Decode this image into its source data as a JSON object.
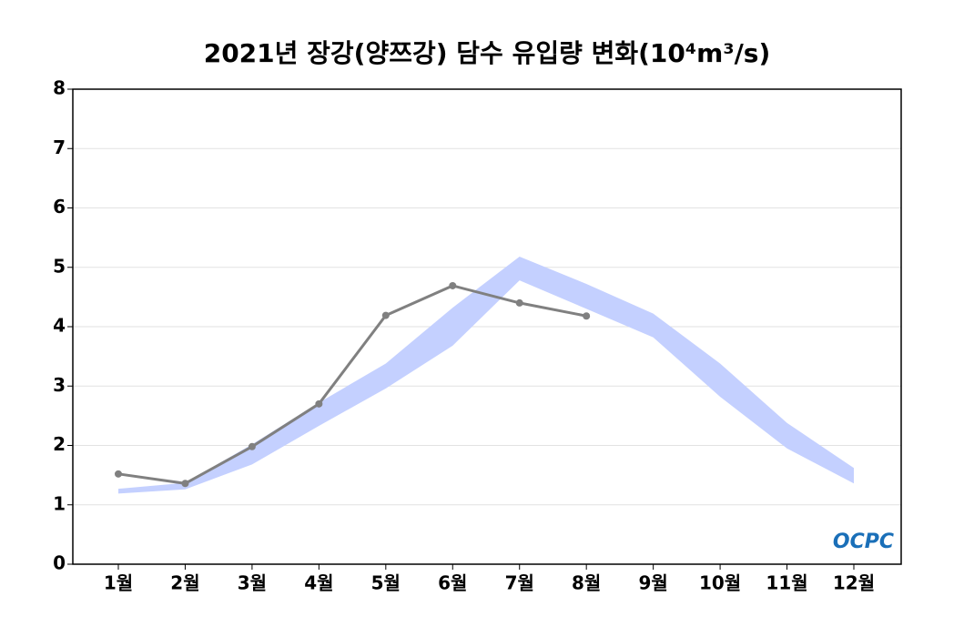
{
  "chart_data": {
    "type": "line",
    "title": "2021년 장강(양쯔강) 담수 유입량 변화(10⁴m³/s)",
    "categories": [
      "1월",
      "2월",
      "3월",
      "4월",
      "5월",
      "6월",
      "7월",
      "8월",
      "9월",
      "10월",
      "11월",
      "12월"
    ],
    "series": [
      {
        "name": "2021",
        "color": "#808080",
        "values": [
          1.52,
          1.36,
          1.98,
          2.7,
          4.19,
          4.69,
          4.4,
          4.18,
          null,
          null,
          null,
          null
        ]
      }
    ],
    "band": {
      "color": "#c4d0ff",
      "upper": [
        1.27,
        1.37,
        2.02,
        2.72,
        3.38,
        4.32,
        5.18,
        4.72,
        4.22,
        3.38,
        2.38,
        1.62
      ],
      "lower": [
        1.19,
        1.26,
        1.68,
        2.33,
        2.96,
        3.68,
        4.78,
        4.3,
        3.82,
        2.82,
        1.95,
        1.36
      ]
    },
    "ylim": [
      0,
      8
    ],
    "yticks": [
      0,
      1,
      2,
      3,
      4,
      5,
      6,
      7,
      8
    ],
    "grid": true,
    "watermark": "OCPC"
  }
}
